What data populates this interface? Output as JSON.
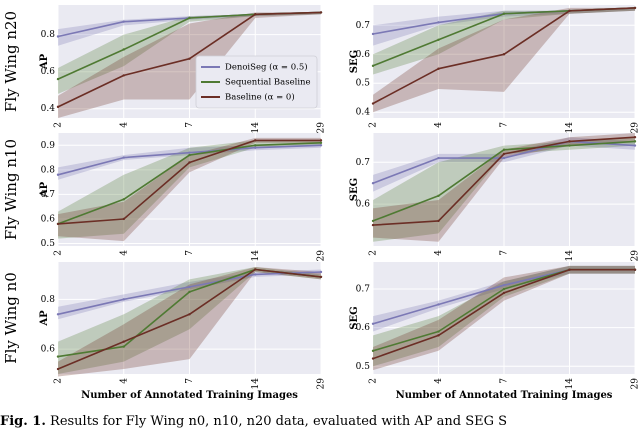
{
  "figure": {
    "x_ticks": [
      "2",
      "4",
      "7",
      "14",
      "29"
    ],
    "xlabel": "Number of Annotated Training Images",
    "row_labels": [
      "Fly Wing n20",
      "Fly Wing n10",
      "Fly Wing n0"
    ],
    "col_ylabels": [
      "AP",
      "SEG"
    ],
    "legend": [
      "DenoiSeg (α = 0.5)",
      "Sequential Baseline",
      "Baseline (α = 0)"
    ],
    "colors": {
      "denoiseg": "#7b78b5",
      "sequential": "#4f7a33",
      "baseline": "#6b2e25"
    }
  },
  "caption": {
    "prefix": "Fig. 1.",
    "text": "Results for Fly Wing n0, n10, n20 data, evaluated with AP and SEG S"
  },
  "chart_data": [
    {
      "type": "line",
      "row": "Fly Wing n20",
      "ylabel": "AP",
      "x": [
        2,
        4,
        7,
        14,
        29
      ],
      "ylim": [
        0.35,
        0.96
      ],
      "yticks": [
        0.4,
        0.6,
        0.8
      ],
      "ytick_labels": [
        "0.4",
        "0.6",
        "0.8"
      ],
      "series": [
        {
          "name": "DenoiSeg (α = 0.5)",
          "values": [
            0.79,
            0.87,
            0.89,
            0.91,
            0.92
          ],
          "lower": [
            0.74,
            0.85,
            0.88,
            0.9,
            0.91
          ],
          "upper": [
            0.83,
            0.88,
            0.9,
            0.91,
            0.92
          ]
        },
        {
          "name": "Sequential Baseline",
          "values": [
            0.56,
            0.72,
            0.89,
            0.91,
            0.92
          ],
          "lower": [
            0.48,
            0.63,
            0.87,
            0.9,
            0.91
          ],
          "upper": [
            0.62,
            0.8,
            0.9,
            0.91,
            0.92
          ]
        },
        {
          "name": "Baseline (α = 0)",
          "values": [
            0.41,
            0.58,
            0.67,
            0.91,
            0.92
          ],
          "lower": [
            0.35,
            0.45,
            0.45,
            0.89,
            0.91
          ],
          "upper": [
            0.47,
            0.68,
            0.86,
            0.92,
            0.92
          ]
        }
      ]
    },
    {
      "type": "line",
      "row": "Fly Wing n20",
      "ylabel": "SEG",
      "x": [
        2,
        4,
        7,
        14,
        29
      ],
      "ylim": [
        0.38,
        0.77
      ],
      "yticks": [
        0.4,
        0.5,
        0.6,
        0.7
      ],
      "ytick_labels": [
        "0.4",
        "0.5",
        "0.6",
        "0.7"
      ],
      "series": [
        {
          "name": "DenoiSeg (α = 0.5)",
          "values": [
            0.67,
            0.71,
            0.74,
            0.75,
            0.76
          ],
          "lower": [
            0.63,
            0.7,
            0.73,
            0.74,
            0.75
          ],
          "upper": [
            0.7,
            0.73,
            0.75,
            0.75,
            0.76
          ]
        },
        {
          "name": "Sequential Baseline",
          "values": [
            0.56,
            0.65,
            0.74,
            0.75,
            0.76
          ],
          "lower": [
            0.53,
            0.6,
            0.72,
            0.74,
            0.75
          ],
          "upper": [
            0.6,
            0.7,
            0.75,
            0.75,
            0.76
          ]
        },
        {
          "name": "Baseline (α = 0)",
          "values": [
            0.43,
            0.55,
            0.6,
            0.75,
            0.76
          ],
          "lower": [
            0.4,
            0.48,
            0.47,
            0.74,
            0.75
          ],
          "upper": [
            0.46,
            0.62,
            0.72,
            0.76,
            0.76
          ]
        }
      ]
    },
    {
      "type": "line",
      "row": "Fly Wing n10",
      "ylabel": "AP",
      "x": [
        2,
        4,
        7,
        14,
        29
      ],
      "ylim": [
        0.49,
        0.95
      ],
      "yticks": [
        0.5,
        0.6,
        0.7,
        0.8,
        0.9
      ],
      "ytick_labels": [
        "0.5",
        "0.6",
        "0.7",
        "0.8",
        "0.9"
      ],
      "series": [
        {
          "name": "DenoiSeg (α = 0.5)",
          "values": [
            0.78,
            0.85,
            0.87,
            0.89,
            0.9
          ],
          "lower": [
            0.76,
            0.84,
            0.86,
            0.88,
            0.89
          ],
          "upper": [
            0.81,
            0.86,
            0.89,
            0.9,
            0.91
          ]
        },
        {
          "name": "Sequential Baseline",
          "values": [
            0.58,
            0.68,
            0.86,
            0.9,
            0.91
          ],
          "lower": [
            0.52,
            0.54,
            0.81,
            0.89,
            0.9
          ],
          "upper": [
            0.63,
            0.78,
            0.89,
            0.92,
            0.92
          ]
        },
        {
          "name": "Baseline (α = 0)",
          "values": [
            0.58,
            0.6,
            0.83,
            0.92,
            0.92
          ],
          "lower": [
            0.53,
            0.51,
            0.79,
            0.91,
            0.91
          ],
          "upper": [
            0.62,
            0.67,
            0.86,
            0.93,
            0.93
          ]
        }
      ]
    },
    {
      "type": "line",
      "row": "Fly Wing n10",
      "ylabel": "SEG",
      "x": [
        2,
        4,
        7,
        14,
        29
      ],
      "ylim": [
        0.5,
        0.77
      ],
      "yticks": [
        0.6,
        0.7
      ],
      "ytick_labels": [
        "0.6",
        "0.7"
      ],
      "series": [
        {
          "name": "DenoiSeg (α = 0.5)",
          "values": [
            0.65,
            0.71,
            0.71,
            0.75,
            0.74
          ],
          "lower": [
            0.63,
            0.7,
            0.7,
            0.74,
            0.73
          ],
          "upper": [
            0.67,
            0.72,
            0.72,
            0.76,
            0.75
          ]
        },
        {
          "name": "Sequential Baseline",
          "values": [
            0.56,
            0.62,
            0.73,
            0.74,
            0.75
          ],
          "lower": [
            0.51,
            0.53,
            0.72,
            0.73,
            0.74
          ],
          "upper": [
            0.61,
            0.7,
            0.74,
            0.75,
            0.76
          ]
        },
        {
          "name": "Baseline (α = 0)",
          "values": [
            0.55,
            0.56,
            0.72,
            0.75,
            0.76
          ],
          "lower": [
            0.52,
            0.51,
            0.71,
            0.74,
            0.75
          ],
          "upper": [
            0.59,
            0.61,
            0.73,
            0.76,
            0.77
          ]
        }
      ]
    },
    {
      "type": "line",
      "row": "Fly Wing n0",
      "ylabel": "AP",
      "x": [
        2,
        4,
        7,
        14,
        29
      ],
      "ylim": [
        0.5,
        0.95
      ],
      "yticks": [
        0.6,
        0.8
      ],
      "ytick_labels": [
        "0.6",
        "0.8"
      ],
      "series": [
        {
          "name": "DenoiSeg (α = 0.5)",
          "values": [
            0.74,
            0.8,
            0.85,
            0.9,
            0.91
          ],
          "lower": [
            0.72,
            0.79,
            0.84,
            0.89,
            0.9
          ],
          "upper": [
            0.77,
            0.82,
            0.87,
            0.91,
            0.92
          ]
        },
        {
          "name": "Sequential Baseline",
          "values": [
            0.57,
            0.61,
            0.83,
            0.92,
            0.89
          ],
          "lower": [
            0.5,
            0.55,
            0.68,
            0.91,
            0.88
          ],
          "upper": [
            0.63,
            0.74,
            0.88,
            0.93,
            0.9
          ]
        },
        {
          "name": "Baseline (α = 0)",
          "values": [
            0.52,
            0.63,
            0.74,
            0.92,
            0.89
          ],
          "lower": [
            0.49,
            0.52,
            0.56,
            0.91,
            0.88
          ],
          "upper": [
            0.55,
            0.7,
            0.86,
            0.93,
            0.91
          ]
        }
      ]
    },
    {
      "type": "line",
      "row": "Fly Wing n0",
      "ylabel": "SEG",
      "x": [
        2,
        4,
        7,
        14,
        29
      ],
      "ylim": [
        0.48,
        0.77
      ],
      "yticks": [
        0.5,
        0.6,
        0.7
      ],
      "ytick_labels": [
        "0.5",
        "0.6",
        "0.7"
      ],
      "series": [
        {
          "name": "DenoiSeg (α = 0.5)",
          "values": [
            0.61,
            0.66,
            0.71,
            0.75,
            0.75
          ],
          "lower": [
            0.59,
            0.65,
            0.7,
            0.74,
            0.74
          ],
          "upper": [
            0.63,
            0.67,
            0.72,
            0.76,
            0.76
          ]
        },
        {
          "name": "Sequential Baseline",
          "values": [
            0.54,
            0.59,
            0.7,
            0.75,
            0.75
          ],
          "lower": [
            0.5,
            0.55,
            0.68,
            0.74,
            0.74
          ],
          "upper": [
            0.58,
            0.63,
            0.72,
            0.76,
            0.76
          ]
        },
        {
          "name": "Baseline (α = 0)",
          "values": [
            0.52,
            0.58,
            0.69,
            0.75,
            0.75
          ],
          "lower": [
            0.49,
            0.54,
            0.67,
            0.74,
            0.74
          ],
          "upper": [
            0.55,
            0.62,
            0.73,
            0.76,
            0.76
          ]
        }
      ]
    }
  ]
}
